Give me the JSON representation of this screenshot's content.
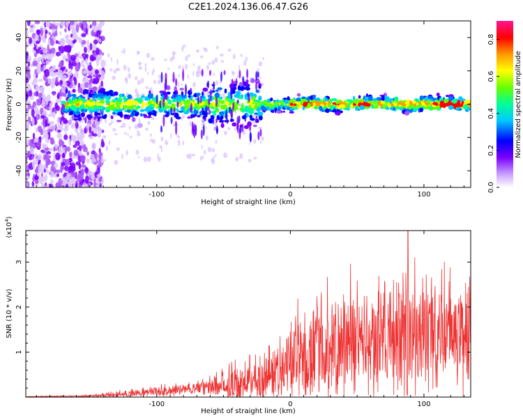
{
  "title": "C2E1.2024.136.06.47.G26",
  "chart_data": [
    {
      "type": "heatmap",
      "xlabel": "Height of straight line (km)",
      "ylabel": "Frequency (Hz)",
      "xlim": [
        -198,
        135
      ],
      "ylim": [
        -50,
        50
      ],
      "x_ticks": [
        -100,
        0,
        100
      ],
      "y_ticks": [
        -40,
        -20,
        0,
        20,
        40
      ],
      "colorbar": {
        "label": "Normalized spectral amplitude",
        "range": [
          0.0,
          0.9
        ],
        "ticks": [
          0.0,
          0.2,
          0.4,
          0.6,
          0.8
        ]
      },
      "colors": {
        "low": "#ffffff",
        "violet": "#8a2be2",
        "blue": "#0000ff",
        "cyan": "#00e5ff",
        "green": "#33ff33",
        "yellow": "#ffff00",
        "red": "#ff0000",
        "magenta": "#ff1493"
      },
      "signal_band": {
        "x_start": -170,
        "x_end": 135,
        "center_frequency": 0,
        "peak_amplitude_x": 120
      }
    },
    {
      "type": "line",
      "xlabel": "Height of straight line (km)",
      "ylabel": "SNR (10 * v/v)",
      "y_multiplier": "(x10",
      "y_multiplier_exp": "4",
      "xlim": [
        -198,
        135
      ],
      "ylim": [
        0,
        3.7
      ],
      "x_ticks": [
        -100,
        0,
        100
      ],
      "y_ticks": [
        1,
        2,
        3
      ],
      "line_color": "#ee3333",
      "envelope": {
        "x": [
          -198,
          -160,
          -140,
          -120,
          -100,
          -80,
          -60,
          -40,
          -30,
          -20,
          -10,
          0,
          10,
          20,
          40,
          60,
          80,
          100,
          120,
          135
        ],
        "mean": [
          0.01,
          0.02,
          0.04,
          0.08,
          0.12,
          0.18,
          0.22,
          0.3,
          0.35,
          0.45,
          0.6,
          0.8,
          0.95,
          1.05,
          1.2,
          1.3,
          1.35,
          1.4,
          1.45,
          1.5
        ],
        "max": [
          0.02,
          0.05,
          0.1,
          0.2,
          0.3,
          0.35,
          0.5,
          0.9,
          1.0,
          1.2,
          1.6,
          2.0,
          2.4,
          2.8,
          3.0,
          3.1,
          3.2,
          3.1,
          3.0,
          3.0
        ]
      }
    }
  ]
}
